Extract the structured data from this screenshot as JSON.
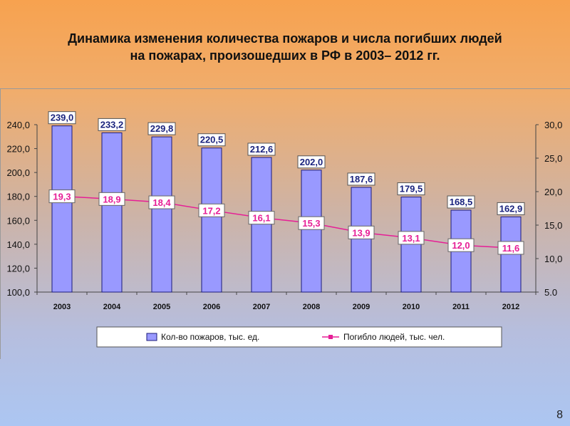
{
  "slide": {
    "title_line1": "Динамика изменения количества пожаров и числа погибших людей",
    "title_line2": "на пожарах, произошедших в РФ в 2003– 2012 гг.",
    "page_number": "8"
  },
  "chart_data": {
    "type": "bar",
    "categories": [
      "2003",
      "2004",
      "2005",
      "2006",
      "2007",
      "2008",
      "2009",
      "2010",
      "2011",
      "2012"
    ],
    "series": [
      {
        "name": "Кол-во пожаров, тыс. ед.",
        "type": "bar",
        "axis": "left",
        "values": [
          239.0,
          233.2,
          229.8,
          220.5,
          212.6,
          202.0,
          187.6,
          179.5,
          168.5,
          162.9
        ],
        "labels": [
          "239,0",
          "233,2",
          "229,8",
          "220,5",
          "212,6",
          "202,0",
          "187,6",
          "179,5",
          "168,5",
          "162,9"
        ],
        "color": "#9999ff"
      },
      {
        "name": "Погибло людей, тыс. чел.",
        "type": "line",
        "axis": "right",
        "values": [
          19.3,
          18.9,
          18.4,
          17.2,
          16.1,
          15.3,
          13.9,
          13.1,
          12.0,
          11.6
        ],
        "labels": [
          "19,3",
          "18,9",
          "18,4",
          "17,2",
          "16,1",
          "15,3",
          "13,9",
          "13,1",
          "12,0",
          "11,6"
        ],
        "color": "#e61e96"
      }
    ],
    "y_left": {
      "ylim": [
        100,
        240
      ],
      "ticks": [
        100,
        120,
        140,
        160,
        180,
        200,
        220,
        240
      ],
      "tick_labels": [
        "100,0",
        "120,0",
        "140,0",
        "160,0",
        "180,0",
        "200,0",
        "220,0",
        "240,0"
      ]
    },
    "y_right": {
      "ylim": [
        5,
        30
      ],
      "ticks": [
        5,
        10,
        15,
        20,
        25,
        30
      ],
      "tick_labels": [
        "5.0",
        "10,0",
        "15,0",
        "20,0",
        "25,0",
        "30,0"
      ]
    },
    "legend_position": "bottom",
    "grid": false
  }
}
